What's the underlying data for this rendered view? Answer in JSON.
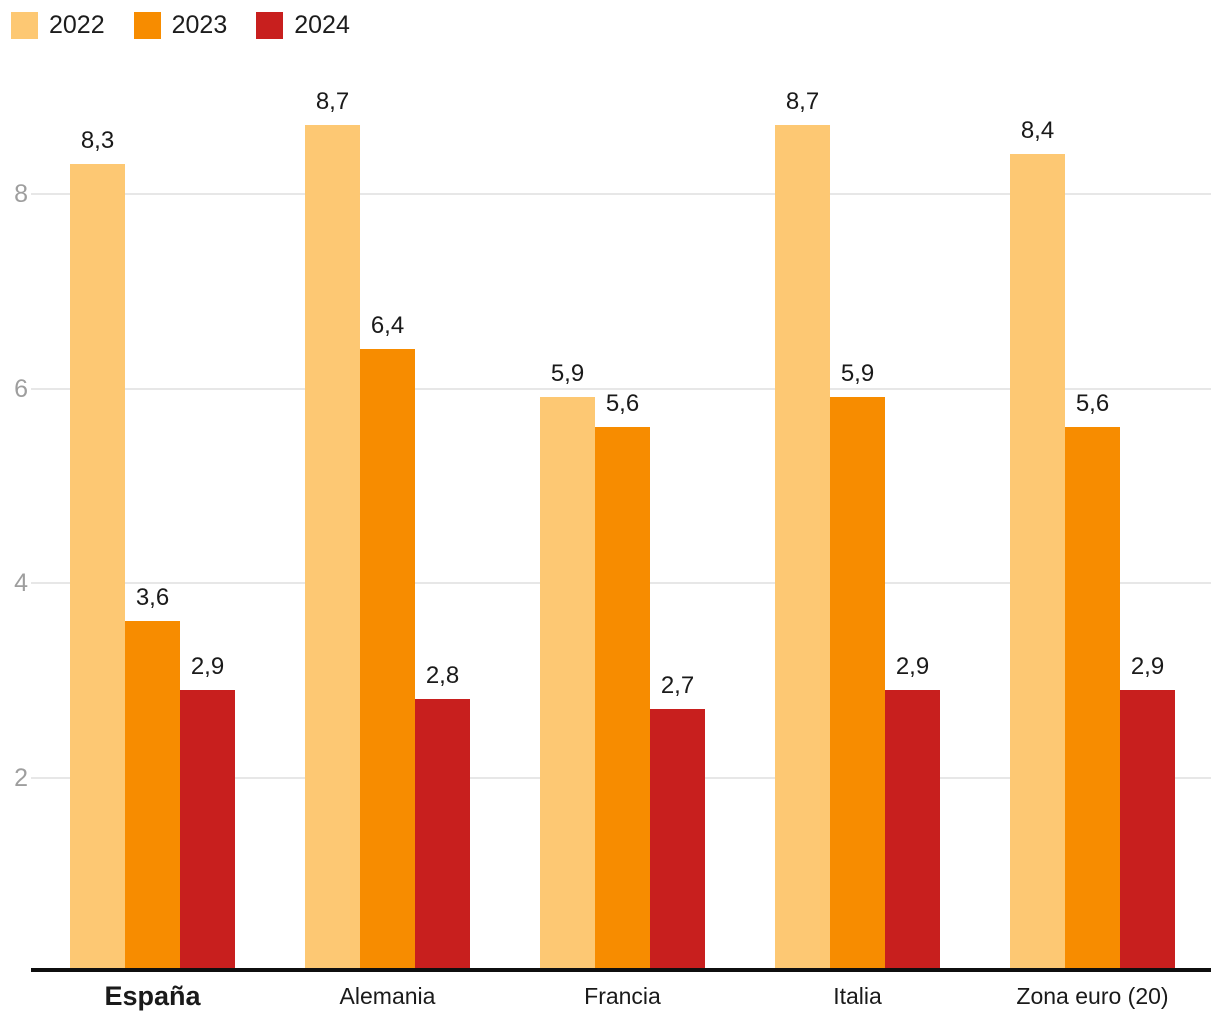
{
  "legend": {
    "items": [
      {
        "label": "2022",
        "color": "#fdc873"
      },
      {
        "label": "2023",
        "color": "#f78c00"
      },
      {
        "label": "2024",
        "color": "#c81f1e"
      }
    ]
  },
  "chart_data": {
    "type": "bar",
    "categories": [
      "España",
      "Alemania",
      "Francia",
      "Italia",
      "Zona euro (20)"
    ],
    "series": [
      {
        "name": "2022",
        "color": "#fdc873",
        "values": [
          8.3,
          8.7,
          5.9,
          8.7,
          8.4
        ]
      },
      {
        "name": "2023",
        "color": "#f78c00",
        "values": [
          3.6,
          6.4,
          5.6,
          5.9,
          5.6
        ]
      },
      {
        "name": "2024",
        "color": "#c81f1e",
        "values": [
          2.9,
          2.8,
          2.7,
          2.9,
          2.9
        ]
      }
    ],
    "y_ticks": [
      2,
      4,
      6,
      8
    ],
    "ylim": [
      0,
      9
    ],
    "grid": true,
    "legend_position": "top-left",
    "decimal_separator": ",",
    "highlight_category": "España",
    "title": "",
    "xlabel": "",
    "ylabel": ""
  },
  "colors": {
    "grid": "#e7e7e7",
    "axis_line": "#0f0f0f",
    "tick_label": "#9e9e9e",
    "value_label": "#1a1a1a",
    "category_label": "#1a1a1a"
  }
}
